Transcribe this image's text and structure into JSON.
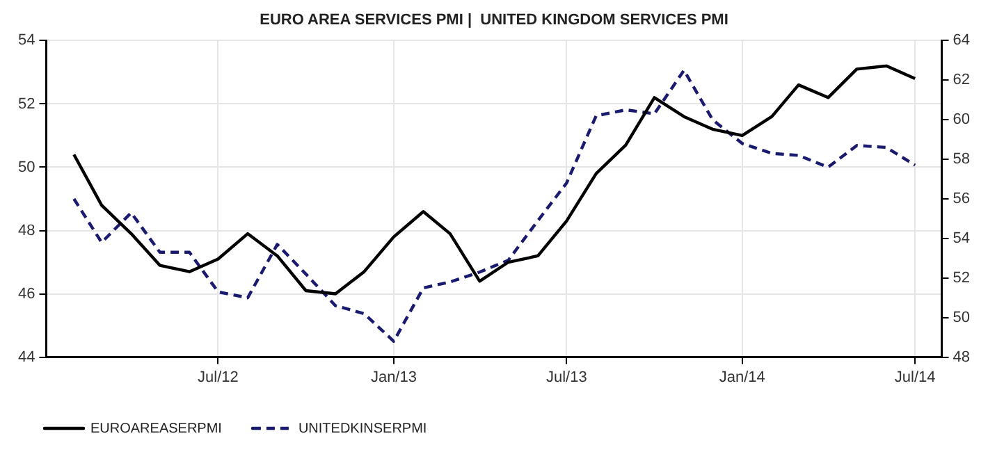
{
  "chart_data": {
    "type": "line",
    "title": "EURO AREA SERVICES PMI |  UNITED KINGDOM SERVICES PMI",
    "x": [
      "2012-02",
      "2012-03",
      "2012-04",
      "2012-05",
      "2012-06",
      "2012-07",
      "2012-08",
      "2012-09",
      "2012-10",
      "2012-11",
      "2012-12",
      "2013-01",
      "2013-02",
      "2013-03",
      "2013-04",
      "2013-05",
      "2013-06",
      "2013-07",
      "2013-08",
      "2013-09",
      "2013-10",
      "2013-11",
      "2013-12",
      "2014-01",
      "2014-02",
      "2014-03",
      "2014-04",
      "2014-05",
      "2014-06",
      "2014-07"
    ],
    "series": [
      {
        "name": "EUROAREASERPMI",
        "color": "#000000",
        "line_style": "solid",
        "values": [
          50.4,
          48.8,
          47.9,
          46.9,
          46.7,
          47.1,
          47.9,
          47.2,
          46.1,
          46.0,
          46.7,
          47.8,
          48.6,
          47.9,
          46.4,
          47.0,
          47.2,
          48.3,
          49.8,
          50.7,
          52.2,
          51.6,
          51.2,
          51.0,
          51.6,
          52.6,
          52.2,
          53.1,
          53.2,
          52.8
        ]
      },
      {
        "name": "UNITEDKINSERPMI",
        "color": "#1a1a6e",
        "line_style": "dashed",
        "axis": "y2",
        "values": [
          56.0,
          53.8,
          55.3,
          53.3,
          53.3,
          51.3,
          51.0,
          53.7,
          52.2,
          50.6,
          50.2,
          48.8,
          51.5,
          51.8,
          52.3,
          52.9,
          54.9,
          56.8,
          60.2,
          60.5,
          60.3,
          62.5,
          60.0,
          58.8,
          58.3,
          58.2,
          57.6,
          58.7,
          58.6,
          57.7
        ]
      }
    ],
    "xlim": [
      "2012-01-03",
      "2014-07-29"
    ],
    "xticks": [
      {
        "value": "2012-07",
        "label": "Jul/12"
      },
      {
        "value": "2013-01",
        "label": "Jan/13"
      },
      {
        "value": "2013-07",
        "label": "Jul/13"
      },
      {
        "value": "2014-01",
        "label": "Jan/14"
      },
      {
        "value": "2014-07",
        "label": "Jul/14"
      }
    ],
    "ylim": [
      44,
      54
    ],
    "yticks": [
      44,
      46,
      48,
      50,
      52,
      54
    ],
    "y2lim": [
      48,
      64
    ],
    "y2ticks": [
      48,
      50,
      52,
      54,
      56,
      58,
      60,
      62,
      64
    ],
    "grid": true,
    "legend": "bottom left",
    "marker": "none"
  }
}
